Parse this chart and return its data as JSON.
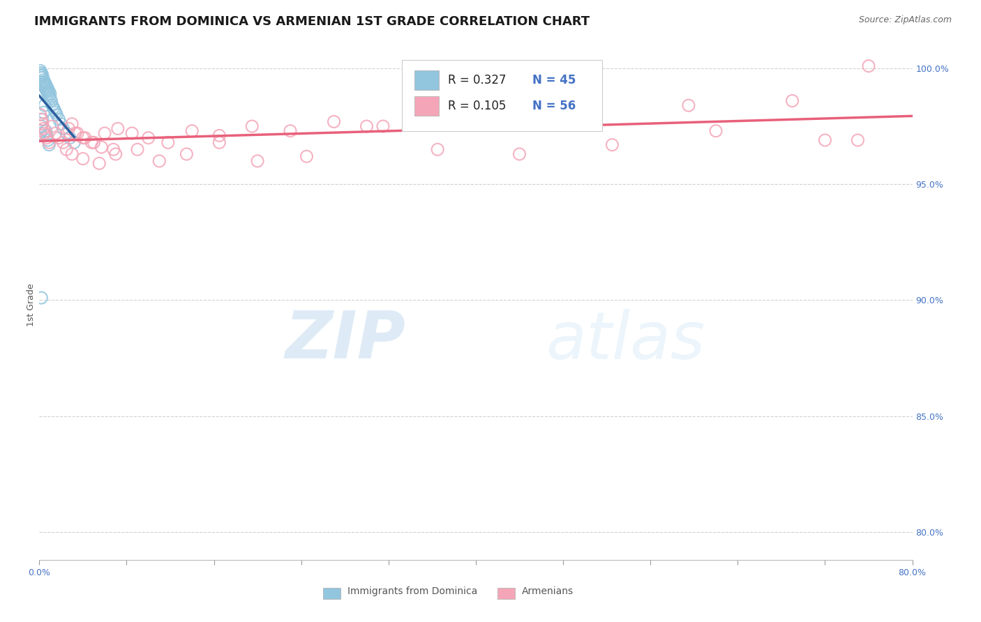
{
  "title": "IMMIGRANTS FROM DOMINICA VS ARMENIAN 1ST GRADE CORRELATION CHART",
  "source_text": "Source: ZipAtlas.com",
  "ylabel": "1st Grade",
  "xlim": [
    0.0,
    0.8
  ],
  "ylim": [
    0.788,
    1.008
  ],
  "yticks": [
    0.8,
    0.85,
    0.9,
    0.95,
    1.0
  ],
  "ytick_labels": [
    "80.0%",
    "85.0%",
    "90.0%",
    "95.0%",
    "100.0%"
  ],
  "xticks": [
    0.0,
    0.08,
    0.16,
    0.24,
    0.32,
    0.4,
    0.48,
    0.56,
    0.64,
    0.72,
    0.8
  ],
  "xtick_labels": [
    "0.0%",
    "",
    "",
    "",
    "",
    "",
    "",
    "",
    "",
    "",
    "80.0%"
  ],
  "legend_r1": "R = 0.327",
  "legend_n1": "N = 45",
  "legend_r2": "R = 0.105",
  "legend_n2": "N = 56",
  "blue_color": "#92c5de",
  "pink_color": "#f4a6b8",
  "blue_line_color": "#2c5f9e",
  "pink_line_color": "#e8607a",
  "dominica_x": [
    0.001,
    0.001,
    0.001,
    0.002,
    0.002,
    0.002,
    0.003,
    0.003,
    0.003,
    0.004,
    0.004,
    0.005,
    0.005,
    0.006,
    0.006,
    0.007,
    0.007,
    0.008,
    0.008,
    0.009,
    0.009,
    0.01,
    0.01,
    0.011,
    0.012,
    0.013,
    0.014,
    0.015,
    0.016,
    0.018,
    0.02,
    0.022,
    0.025,
    0.028,
    0.032,
    0.001,
    0.002,
    0.003,
    0.004,
    0.005,
    0.006,
    0.007,
    0.008,
    0.009,
    0.002
  ],
  "dominica_y": [
    0.997,
    0.998,
    0.999,
    0.996,
    0.997,
    0.998,
    0.994,
    0.996,
    0.997,
    0.993,
    0.995,
    0.992,
    0.994,
    0.991,
    0.993,
    0.99,
    0.992,
    0.989,
    0.991,
    0.988,
    0.99,
    0.987,
    0.989,
    0.986,
    0.984,
    0.983,
    0.982,
    0.981,
    0.98,
    0.978,
    0.976,
    0.974,
    0.972,
    0.97,
    0.968,
    0.972,
    0.975,
    0.978,
    0.981,
    0.984,
    0.973,
    0.971,
    0.969,
    0.967,
    0.901
  ],
  "armenian_x": [
    0.001,
    0.002,
    0.003,
    0.004,
    0.005,
    0.007,
    0.009,
    0.012,
    0.015,
    0.018,
    0.022,
    0.027,
    0.033,
    0.04,
    0.048,
    0.057,
    0.068,
    0.03,
    0.035,
    0.042,
    0.05,
    0.06,
    0.072,
    0.085,
    0.1,
    0.118,
    0.14,
    0.165,
    0.195,
    0.23,
    0.27,
    0.315,
    0.37,
    0.435,
    0.51,
    0.595,
    0.69,
    0.76,
    0.025,
    0.03,
    0.04,
    0.055,
    0.07,
    0.09,
    0.11,
    0.135,
    0.165,
    0.2,
    0.245,
    0.3,
    0.365,
    0.44,
    0.525,
    0.62,
    0.72,
    0.75
  ],
  "armenian_y": [
    0.98,
    0.978,
    0.976,
    0.974,
    0.972,
    0.97,
    0.968,
    0.975,
    0.972,
    0.97,
    0.968,
    0.974,
    0.972,
    0.97,
    0.968,
    0.966,
    0.965,
    0.976,
    0.972,
    0.97,
    0.968,
    0.972,
    0.974,
    0.972,
    0.97,
    0.968,
    0.973,
    0.971,
    0.975,
    0.973,
    0.977,
    0.975,
    0.978,
    0.98,
    0.982,
    0.984,
    0.986,
    1.001,
    0.965,
    0.963,
    0.961,
    0.959,
    0.963,
    0.965,
    0.96,
    0.963,
    0.968,
    0.96,
    0.962,
    0.975,
    0.965,
    0.963,
    0.967,
    0.973,
    0.969,
    0.969
  ],
  "watermark_zip": "ZIP",
  "watermark_atlas": "atlas",
  "background_color": "#ffffff",
  "grid_color": "#cccccc",
  "title_fontsize": 13,
  "axis_label_fontsize": 9,
  "tick_label_fontsize": 9,
  "legend_fontsize": 12,
  "right_tick_color": "#4472c4",
  "bottom_tick_color": "#4472c4"
}
